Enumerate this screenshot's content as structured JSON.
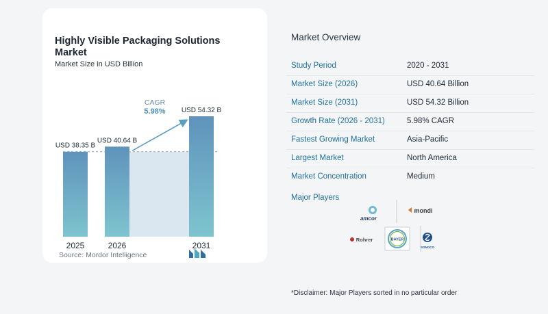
{
  "chart": {
    "title": "Highly Visible Packaging Solutions Market",
    "subtitle": "Market Size in USD Billion",
    "cagr_label": "CAGR",
    "cagr_value": "5.98%",
    "source": "Source:  Mordor Intelligence",
    "colors": {
      "bar": "#5f93bb",
      "bar_gradient_bottom": "#7ec4cf",
      "highlight": "#dbe7f0",
      "arrow": "#5a9ec2",
      "cagr": "#4d8fb8"
    }
  },
  "chart_data": {
    "type": "bar",
    "categories": [
      "2025",
      "2026",
      "2031"
    ],
    "values": [
      38.35,
      40.64,
      54.32
    ],
    "value_labels": [
      "USD 38.35 B",
      "USD 40.64 B",
      "USD 54.32 B"
    ],
    "ylabel": "Market Size in USD Billion",
    "ylim": [
      0,
      58
    ],
    "grid": false
  },
  "overview": {
    "title": "Market Overview",
    "rows": [
      {
        "label": "Study Period",
        "value": "2020 - 2031"
      },
      {
        "label": "Market Size (2026)",
        "value": "USD 40.64 Billion"
      },
      {
        "label": "Market Size (2031)",
        "value": "USD 54.32 Billion"
      },
      {
        "label": "Growth Rate (2026 - 2031)",
        "value": "5.98% CAGR"
      },
      {
        "label": "Fastest Growing Market",
        "value": "Asia-Pacific"
      },
      {
        "label": "Largest Market",
        "value": "North America"
      },
      {
        "label": "Market Concentration",
        "value": "Medium"
      }
    ],
    "players_title": "Major Players",
    "players": [
      "amcor",
      "mondi",
      "Rohrer",
      "BAYER",
      "SONOCO"
    ],
    "disclaimer": "*Disclaimer: Major Players sorted in no particular order"
  }
}
